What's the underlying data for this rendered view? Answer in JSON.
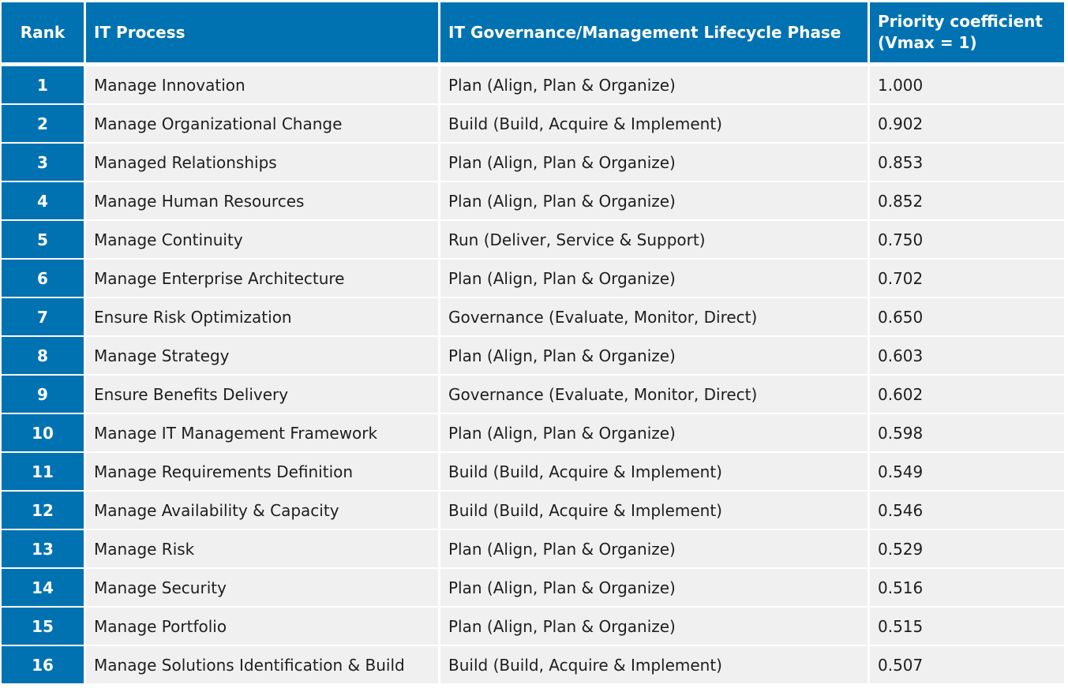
{
  "chart_data": {
    "type": "table",
    "columns": [
      "Rank",
      "IT Process",
      "IT Governance/Management Lifecycle Phase",
      "Priority coefficient (Vmax = 1)"
    ],
    "header": {
      "rank": "Rank",
      "process": "IT Process",
      "phase": "IT Governance/Management Lifecycle Phase",
      "coefficient_line1": "Priority coefficient",
      "coefficient_line2": "(Vmax = 1)"
    },
    "rows": [
      {
        "rank": "1",
        "process": "Manage Innovation",
        "phase": "Plan (Align, Plan & Organize)",
        "coefficient": "1.000"
      },
      {
        "rank": "2",
        "process": "Manage Organizational Change",
        "phase": "Build (Build, Acquire & Implement)",
        "coefficient": "0.902"
      },
      {
        "rank": "3",
        "process": "Managed Relationships",
        "phase": "Plan (Align, Plan & Organize)",
        "coefficient": "0.853"
      },
      {
        "rank": "4",
        "process": "Manage Human Resources",
        "phase": "Plan (Align, Plan & Organize)",
        "coefficient": "0.852"
      },
      {
        "rank": "5",
        "process": "Manage Continuity",
        "phase": "Run (Deliver, Service & Support)",
        "coefficient": "0.750"
      },
      {
        "rank": "6",
        "process": "Manage Enterprise Architecture",
        "phase": "Plan (Align, Plan & Organize)",
        "coefficient": "0.702"
      },
      {
        "rank": "7",
        "process": "Ensure Risk Optimization",
        "phase": "Governance (Evaluate, Monitor, Direct)",
        "coefficient": "0.650"
      },
      {
        "rank": "8",
        "process": "Manage Strategy",
        "phase": "Plan (Align, Plan & Organize)",
        "coefficient": "0.603"
      },
      {
        "rank": "9",
        "process": "Ensure Benefits Delivery",
        "phase": "Governance (Evaluate, Monitor, Direct)",
        "coefficient": "0.602"
      },
      {
        "rank": "10",
        "process": "Manage IT Management Framework",
        "phase": "Plan (Align, Plan & Organize)",
        "coefficient": "0.598"
      },
      {
        "rank": "11",
        "process": "Manage Requirements Definition",
        "phase": "Build (Build, Acquire & Implement)",
        "coefficient": "0.549"
      },
      {
        "rank": "12",
        "process": "Manage Availability & Capacity",
        "phase": "Build (Build, Acquire & Implement)",
        "coefficient": "0.546"
      },
      {
        "rank": "13",
        "process": "Manage Risk",
        "phase": "Plan (Align, Plan & Organize)",
        "coefficient": "0.529"
      },
      {
        "rank": "14",
        "process": "Manage Security",
        "phase": "Plan (Align, Plan & Organize)",
        "coefficient": "0.516"
      },
      {
        "rank": "15",
        "process": "Manage Portfolio",
        "phase": "Plan (Align, Plan & Organize)",
        "coefficient": "0.515"
      },
      {
        "rank": "16",
        "process": "Manage Solutions Identification & Build",
        "phase": "Build (Build, Acquire & Implement)",
        "coefficient": "0.507"
      }
    ]
  },
  "colors": {
    "header_bg": "#0072b1",
    "rank_bg": "#0072b1",
    "cell_bg": "#f0f0f0",
    "text": "#1e1e1e",
    "header_text": "#ffffff"
  }
}
